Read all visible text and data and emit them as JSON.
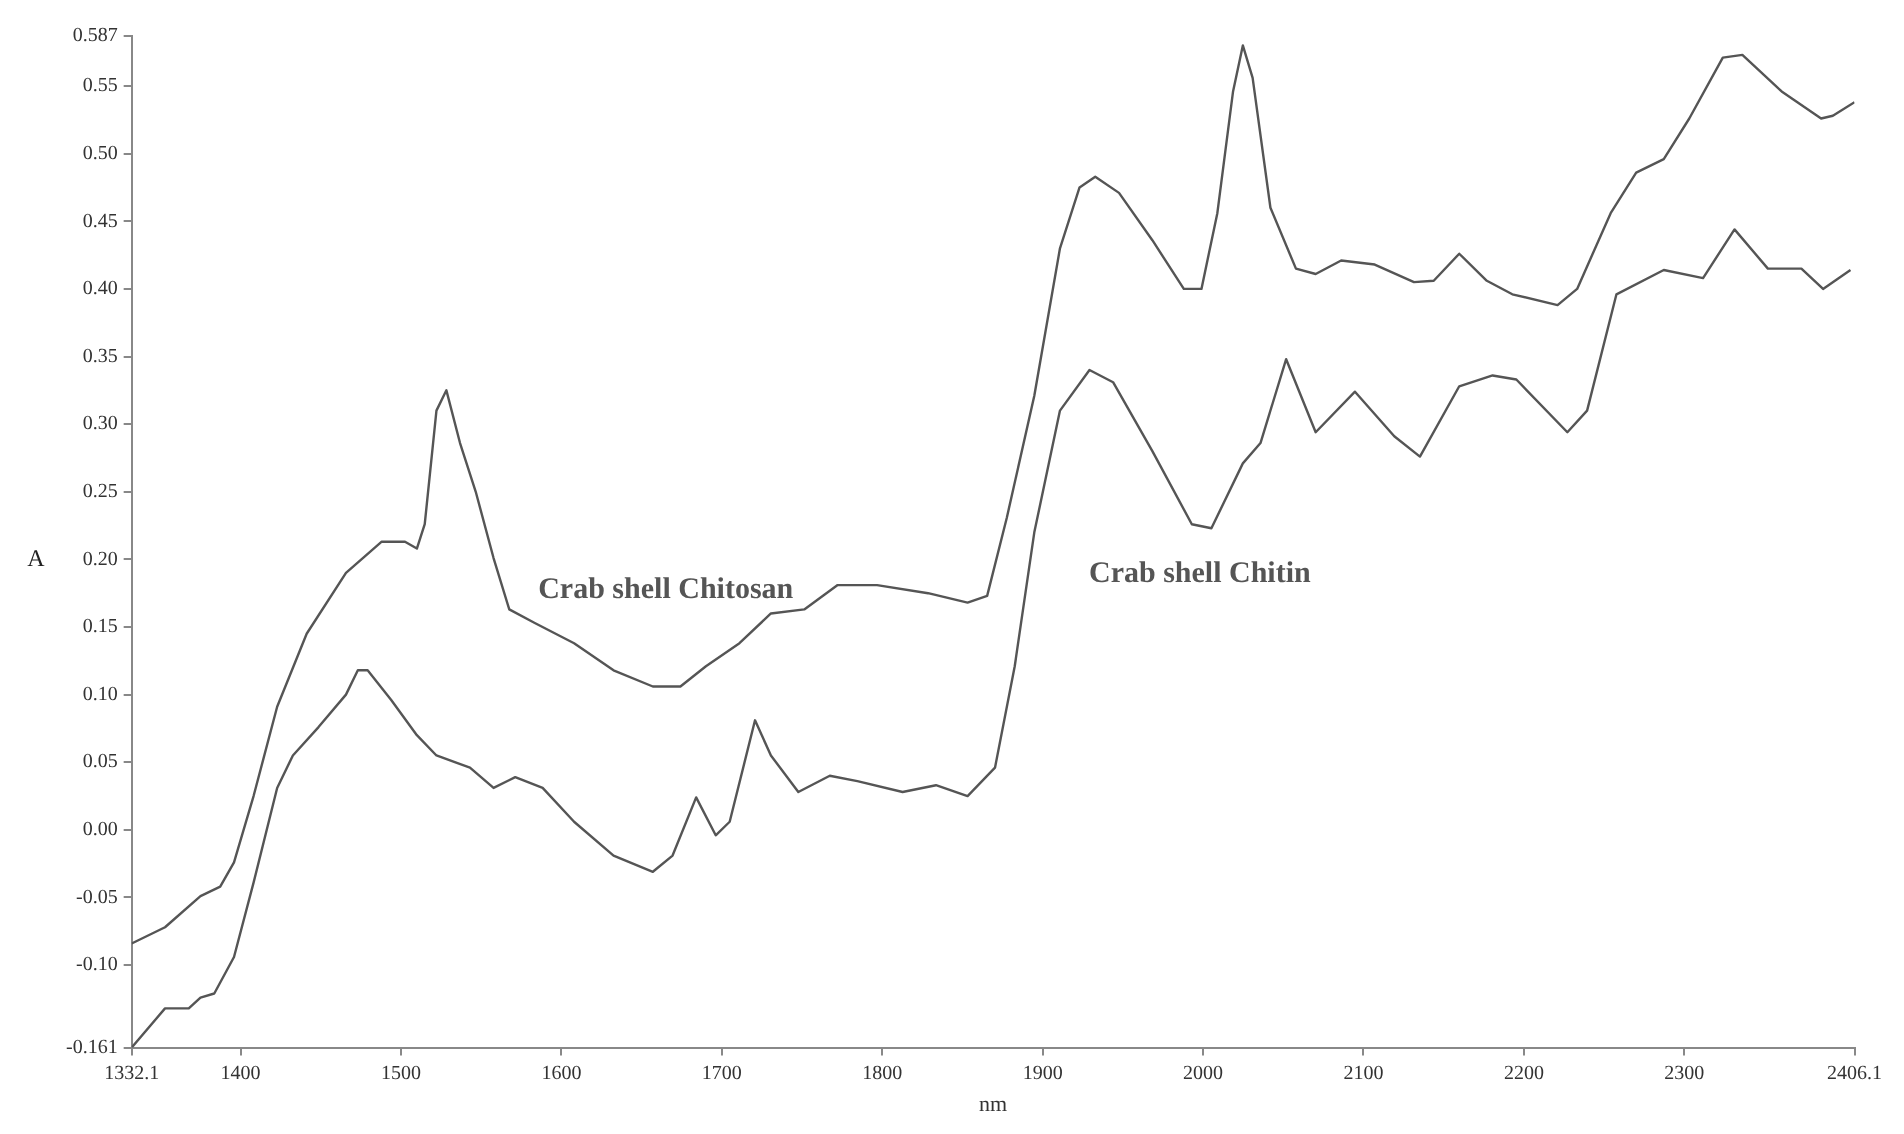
{
  "chart_data": {
    "type": "line",
    "xlabel": "nm",
    "ylabel": "A",
    "xlim": [
      1332.1,
      2406.1
    ],
    "ylim": [
      -0.161,
      0.587
    ],
    "xticks": [
      1332.1,
      1400,
      1500,
      1600,
      1700,
      1800,
      1900,
      2000,
      2100,
      2200,
      2300,
      2406.1
    ],
    "yticks": [
      {
        "value": -0.161,
        "label": "-0.161"
      },
      {
        "value": -0.1,
        "label": "-0.10"
      },
      {
        "value": -0.05,
        "label": "-0.05"
      },
      {
        "value": 0,
        "label": "0.00"
      },
      {
        "value": 0.05,
        "label": "0.05"
      },
      {
        "value": 0.1,
        "label": "0.10"
      },
      {
        "value": 0.15,
        "label": "0.15"
      },
      {
        "value": 0.2,
        "label": "0.20"
      },
      {
        "value": 0.25,
        "label": "0.25"
      },
      {
        "value": 0.3,
        "label": "0.30"
      },
      {
        "value": 0.35,
        "label": "0.35"
      },
      {
        "value": 0.4,
        "label": "0.40"
      },
      {
        "value": 0.45,
        "label": "0.45"
      },
      {
        "value": 0.5,
        "label": "0.50"
      },
      {
        "value": 0.55,
        "label": "0.55"
      },
      {
        "value": 0.587,
        "label": "0.587"
      }
    ],
    "grid": false,
    "legend": false,
    "marker": "none",
    "line_style": "solid",
    "series": [
      {
        "name": "Crab shell Chitosan",
        "color": "#555555",
        "x": [
          1332.1,
          1352.9,
          1375.0,
          1387.3,
          1395.9,
          1408.1,
          1422.8,
          1441.2,
          1465.7,
          1487.8,
          1502.5,
          1509.9,
          1514.8,
          1522.1,
          1528.3,
          1536.8,
          1546.6,
          1557.7,
          1567.5,
          1583.4,
          1607.9,
          1632.5,
          1657.0,
          1674.2,
          1690.1,
          1711.0,
          1730.6,
          1751.4,
          1772.2,
          1796.8,
          1828.6,
          1853.2,
          1865.4,
          1877.7,
          1894.8,
          1910.8,
          1923.0,
          1932.8,
          1947.6,
          1968.4,
          1988.0,
          1999.0,
          2008.9,
          2018.7,
          2024.8,
          2030.9,
          2042.0,
          2057.9,
          2070.2,
          2086.1,
          2107.0,
          2131.5,
          2143.8,
          2159.7,
          2176.9,
          2192.8,
          2221.0,
          2233.2,
          2254.1,
          2270.0,
          2287.2,
          2303.1,
          2324.0,
          2336.2,
          2360.7,
          2385.3,
          2392.6,
          2406.1
        ],
        "values": [
          -0.084,
          -0.072,
          -0.049,
          -0.042,
          -0.024,
          0.025,
          0.091,
          0.145,
          0.19,
          0.213,
          0.213,
          0.208,
          0.226,
          0.31,
          0.325,
          0.286,
          0.25,
          0.201,
          0.163,
          0.153,
          0.138,
          0.118,
          0.106,
          0.106,
          0.121,
          0.138,
          0.16,
          0.163,
          0.181,
          0.181,
          0.175,
          0.168,
          0.173,
          0.231,
          0.321,
          0.43,
          0.475,
          0.483,
          0.471,
          0.436,
          0.4,
          0.4,
          0.456,
          0.546,
          0.58,
          0.556,
          0.46,
          0.415,
          0.411,
          0.421,
          0.418,
          0.405,
          0.406,
          0.426,
          0.406,
          0.396,
          0.388,
          0.4,
          0.456,
          0.486,
          0.496,
          0.526,
          0.571,
          0.573,
          0.546,
          0.526,
          0.528,
          0.538
        ]
      },
      {
        "name": "Crab shell Chitin",
        "color": "#555555",
        "x": [
          1332.1,
          1352.9,
          1367.7,
          1375.0,
          1383.6,
          1395.9,
          1408.1,
          1422.8,
          1432.6,
          1448.6,
          1465.7,
          1473.1,
          1479.2,
          1493.9,
          1509.9,
          1522.1,
          1543.0,
          1557.7,
          1571.2,
          1588.3,
          1607.9,
          1632.5,
          1657.0,
          1669.3,
          1684.0,
          1696.2,
          1704.9,
          1720.7,
          1730.6,
          1747.7,
          1767.3,
          1784.5,
          1812.7,
          1833.5,
          1853.2,
          1870.3,
          1882.6,
          1894.8,
          1910.8,
          1929.2,
          1943.9,
          1968.4,
          1993.0,
          2005.2,
          2024.8,
          2035.8,
          2051.8,
          2070.2,
          2094.7,
          2119.2,
          2135.2,
          2159.7,
          2180.5,
          2195.3,
          2227.1,
          2239.4,
          2257.7,
          2287.2,
          2311.7,
          2331.3,
          2352.1,
          2373.0,
          2386.5,
          2403.6
        ],
        "values": [
          -0.161,
          -0.132,
          -0.132,
          -0.124,
          -0.121,
          -0.094,
          -0.039,
          0.031,
          0.055,
          0.076,
          0.1,
          0.118,
          0.118,
          0.096,
          0.07,
          0.055,
          0.046,
          0.031,
          0.039,
          0.031,
          0.006,
          -0.019,
          -0.031,
          -0.019,
          0.024,
          -0.004,
          0.006,
          0.081,
          0.055,
          0.028,
          0.04,
          0.036,
          0.028,
          0.033,
          0.025,
          0.046,
          0.121,
          0.22,
          0.31,
          0.34,
          0.331,
          0.28,
          0.226,
          0.223,
          0.271,
          0.286,
          0.348,
          0.294,
          0.324,
          0.291,
          0.276,
          0.328,
          0.336,
          0.333,
          0.294,
          0.31,
          0.396,
          0.414,
          0.408,
          0.444,
          0.415,
          0.415,
          0.4,
          0.414
        ]
      }
    ]
  }
}
